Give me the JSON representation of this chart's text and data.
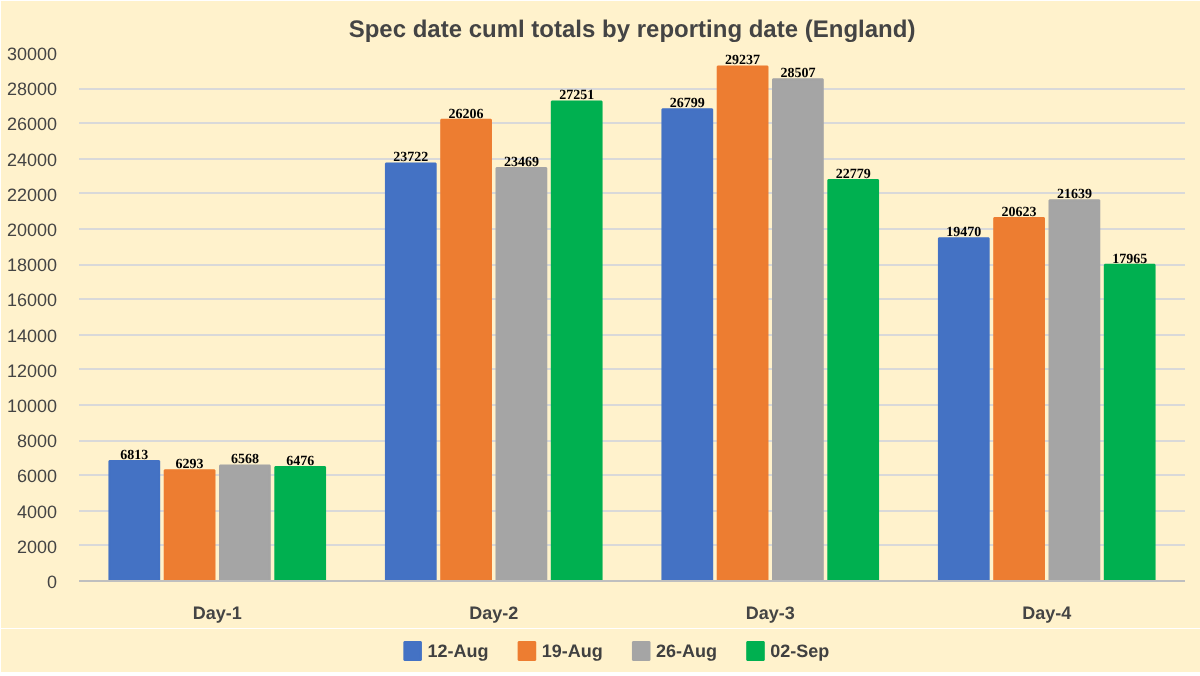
{
  "chart_data": {
    "type": "bar",
    "title": "Spec date cuml totals by reporting date (England)",
    "categories": [
      "Day-1",
      "Day-2",
      "Day-3",
      "Day-4"
    ],
    "series": [
      {
        "name": "12-Aug",
        "color": "#4472c4",
        "values": [
          6813,
          23722,
          26799,
          19470
        ]
      },
      {
        "name": "19-Aug",
        "color": "#ed7d31",
        "values": [
          6293,
          26206,
          29237,
          20623
        ]
      },
      {
        "name": "26-Aug",
        "color": "#a5a5a5",
        "values": [
          6568,
          23469,
          28507,
          21639
        ]
      },
      {
        "name": "02-Sep",
        "color": "#00b050",
        "values": [
          6476,
          27251,
          22779,
          17965
        ]
      }
    ],
    "ylim": [
      0,
      30000
    ],
    "yticks": [
      0,
      2000,
      4000,
      6000,
      8000,
      10000,
      12000,
      14000,
      16000,
      18000,
      20000,
      22000,
      24000,
      26000,
      28000,
      30000
    ],
    "grid": "y",
    "legend": "bottom",
    "data_labels": true
  }
}
